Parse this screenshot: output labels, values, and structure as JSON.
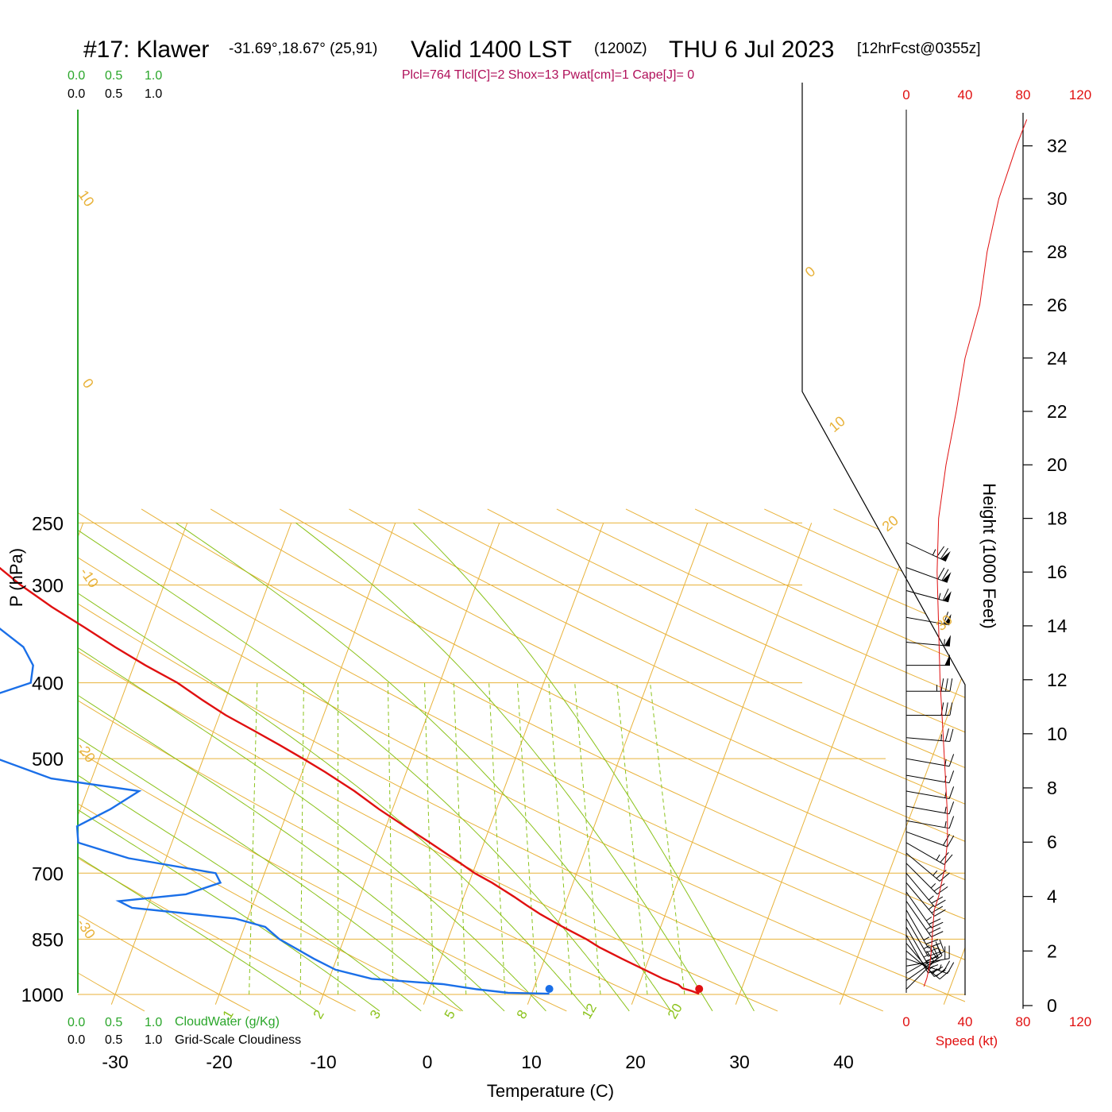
{
  "header": {
    "station": "#17: Klawer",
    "coords": "-31.69°,18.67° (25,91)",
    "valid": "Valid 1400 LST",
    "utc": "(1200Z)",
    "date": "THU 6 Jul 2023",
    "forecast": "[12hrFcst@0355z]",
    "indices": "Plcl=764 Tlcl[C]=2 Shox=13 Pwat[cm]=1 Cape[J]= 0"
  },
  "legend": {
    "cloudwater_ticks": [
      "0.0",
      "0.5",
      "1.0"
    ],
    "cloudiness_ticks": [
      "0.0",
      "0.5",
      "1.0"
    ],
    "cloudwater_label": "CloudWater (g/Kg)",
    "cloudiness_label": "Grid-Scale Cloudiness"
  },
  "colors": {
    "temperature": "#e01010",
    "dewpoint": "#1a6fe8",
    "isotherm": "#e8b23a",
    "moist_adiabat": "#8ac21a",
    "mixing_ratio": "#8ac21a",
    "cloud": "#2aa62a",
    "speed": "#e01010"
  },
  "chart_data": {
    "type": "line",
    "subtype": "skew-T log-P sounding",
    "xlabel": "Temperature (C)",
    "ylabel": "P (hPa)",
    "y2label": "Height (1000 Feet)",
    "x_ticks": [
      -30,
      -20,
      -10,
      0,
      10,
      20,
      30,
      40
    ],
    "pressure_ticks": [
      250,
      300,
      400,
      500,
      700,
      850,
      1000
    ],
    "height_ticks": [
      0,
      2,
      4,
      6,
      8,
      10,
      12,
      14,
      16,
      18,
      20,
      22,
      24,
      26,
      28,
      30,
      32
    ],
    "xlim": [
      -34,
      36
    ],
    "ylim_hpa": [
      1030,
      250
    ],
    "isotherm_labels": [
      "10",
      "0",
      "-10",
      "-20",
      "-30",
      "0",
      "10",
      "20",
      "30"
    ],
    "mixing_ratio_labels": [
      "1",
      "2",
      "3",
      "5",
      "8",
      "12",
      "20"
    ],
    "speed_axis": {
      "label": "Speed (kt)",
      "ticks": [
        "0",
        "40",
        "80",
        "120"
      ]
    },
    "series": [
      {
        "name": "Temperature",
        "pressure": [
          998,
          990,
          982,
          972,
          955,
          930,
          900,
          870,
          850,
          820,
          790,
          770,
          750,
          720,
          700,
          670,
          640,
          610,
          580,
          550,
          520,
          500,
          480,
          460,
          440,
          420,
          400,
          380,
          360,
          340,
          320,
          300,
          280,
          262
        ],
        "temp": [
          26.1,
          25.3,
          24.3,
          23.8,
          22.1,
          20.0,
          17.4,
          14.8,
          13.3,
          10.6,
          8.0,
          6.4,
          4.8,
          2.2,
          0.2,
          -2.4,
          -5.2,
          -8.2,
          -11.3,
          -14.3,
          -17.8,
          -20.4,
          -23.2,
          -26.2,
          -29.4,
          -32.3,
          -35.2,
          -38.9,
          -42.5,
          -46.1,
          -50.0,
          -53.8,
          -57.4,
          -60.9
        ]
      },
      {
        "name": "Dewpoint",
        "pressure": [
          998,
          995,
          985,
          970,
          955,
          930,
          900,
          850,
          820,
          800,
          775,
          760,
          745,
          720,
          700,
          670,
          640,
          610,
          580,
          550,
          530,
          500,
          480,
          460,
          440,
          420,
          400,
          380,
          360,
          340,
          320,
          300,
          280,
          262
        ],
        "temp": [
          11.7,
          7.7,
          4.6,
          1.1,
          -5.9,
          -9.7,
          -12.2,
          -16.2,
          -18.0,
          -21.2,
          -31.5,
          -33.0,
          -26.8,
          -23.9,
          -24.7,
          -33.6,
          -39.0,
          -39.7,
          -37.1,
          -35.0,
          -43.9,
          -49.8,
          -55.8,
          -58.4,
          -55.7,
          -53.5,
          -49.3,
          -49.7,
          -51.3,
          -54.4,
          -55.8,
          -57.8,
          -59.8,
          -61.6
        ]
      }
    ],
    "surface_points": {
      "temperature": 26.1,
      "dewpoint": 11.7
    },
    "wind_speed_profile": {
      "height_kft": [
        0.7,
        1.0,
        1.5,
        2.0,
        2.8,
        3.5,
        4.0,
        5.0,
        6.0,
        7.0,
        8.0,
        10.0,
        12.0,
        14.0,
        16.0,
        18.0,
        20.0,
        22.0,
        24.0,
        26.0,
        28.0,
        30.0,
        32.0,
        33.0
      ],
      "speed_kt": [
        12,
        14,
        16,
        17,
        18,
        19,
        22,
        26,
        28,
        28,
        27,
        25,
        23,
        22,
        21,
        22,
        27,
        34,
        40,
        50,
        55,
        63,
        75,
        82
      ]
    },
    "wind_barbs": [
      {
        "pressure": 985,
        "dir": 45,
        "speed": 18
      },
      {
        "pressure": 960,
        "dir": 55,
        "speed": 18
      },
      {
        "pressure": 940,
        "dir": 60,
        "speed": 20
      },
      {
        "pressure": 920,
        "dir": 80,
        "speed": 22
      },
      {
        "pressure": 900,
        "dir": 110,
        "speed": 25
      },
      {
        "pressure": 880,
        "dir": 130,
        "speed": 25
      },
      {
        "pressure": 860,
        "dir": 140,
        "speed": 25
      },
      {
        "pressure": 840,
        "dir": 150,
        "speed": 25
      },
      {
        "pressure": 820,
        "dir": 150,
        "speed": 25
      },
      {
        "pressure": 800,
        "dir": 150,
        "speed": 25
      },
      {
        "pressure": 780,
        "dir": 150,
        "speed": 25
      },
      {
        "pressure": 760,
        "dir": 145,
        "speed": 25
      },
      {
        "pressure": 740,
        "dir": 145,
        "speed": 25
      },
      {
        "pressure": 720,
        "dir": 140,
        "speed": 25
      },
      {
        "pressure": 700,
        "dir": 140,
        "speed": 25
      },
      {
        "pressure": 680,
        "dir": 135,
        "speed": 25
      },
      {
        "pressure": 660,
        "dir": 130,
        "speed": 25
      },
      {
        "pressure": 640,
        "dir": 120,
        "speed": 25
      },
      {
        "pressure": 620,
        "dir": 110,
        "speed": 20
      },
      {
        "pressure": 600,
        "dir": 100,
        "speed": 15
      },
      {
        "pressure": 575,
        "dir": 100,
        "speed": 15
      },
      {
        "pressure": 550,
        "dir": 100,
        "speed": 15
      },
      {
        "pressure": 525,
        "dir": 100,
        "speed": 15
      },
      {
        "pressure": 500,
        "dir": 100,
        "speed": 15
      },
      {
        "pressure": 470,
        "dir": 95,
        "speed": 25
      },
      {
        "pressure": 440,
        "dir": 90,
        "speed": 30
      },
      {
        "pressure": 410,
        "dir": 90,
        "speed": 35
      },
      {
        "pressure": 380,
        "dir": 90,
        "speed": 50
      },
      {
        "pressure": 355,
        "dir": 95,
        "speed": 55
      },
      {
        "pressure": 330,
        "dir": 100,
        "speed": 60
      },
      {
        "pressure": 305,
        "dir": 105,
        "speed": 65
      },
      {
        "pressure": 285,
        "dir": 110,
        "speed": 70
      },
      {
        "pressure": 265,
        "dir": 115,
        "speed": 75
      }
    ]
  }
}
